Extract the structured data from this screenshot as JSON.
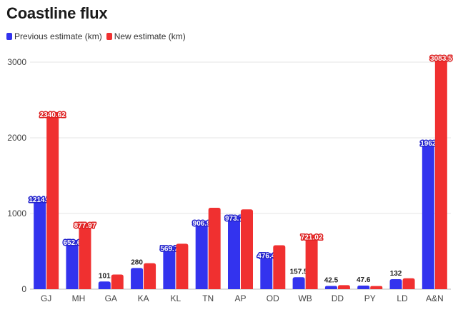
{
  "chart_data": {
    "type": "bar",
    "title": "Coastline flux",
    "categories": [
      "GJ",
      "MH",
      "GA",
      "KA",
      "KL",
      "TN",
      "AP",
      "OD",
      "WB",
      "DD",
      "PY",
      "LD",
      "A&N"
    ],
    "series": [
      {
        "name": "Previous estimate (km)",
        "color": "#3333ee",
        "values": [
          1214.7,
          652.6,
          101,
          280,
          569.7,
          906.9,
          973.7,
          476.4,
          157.5,
          42.5,
          47.6,
          132,
          1962
        ],
        "labels": [
          "1214.7",
          "652.6",
          "101",
          "280",
          "569.7",
          "906.9",
          "973.7",
          "476.4",
          "157.5",
          "42.5",
          "47.6",
          "132",
          "1962"
        ]
      },
      {
        "name": "New estimate (km)",
        "color": "#f03030",
        "values": [
          2340.62,
          877.97,
          193,
          343,
          600,
          1076,
          1054,
          580,
          721.02,
          53,
          41,
          144,
          3083.5
        ],
        "labels": [
          "2340.62",
          "877.97",
          "",
          "",
          "",
          "",
          "",
          "",
          "721.02",
          "",
          "",
          "",
          "3083.5"
        ]
      }
    ],
    "yticks": [
      0,
      1000,
      2000,
      3000
    ],
    "ylim": [
      0,
      3200
    ],
    "grid": true,
    "legend": "top-left"
  }
}
